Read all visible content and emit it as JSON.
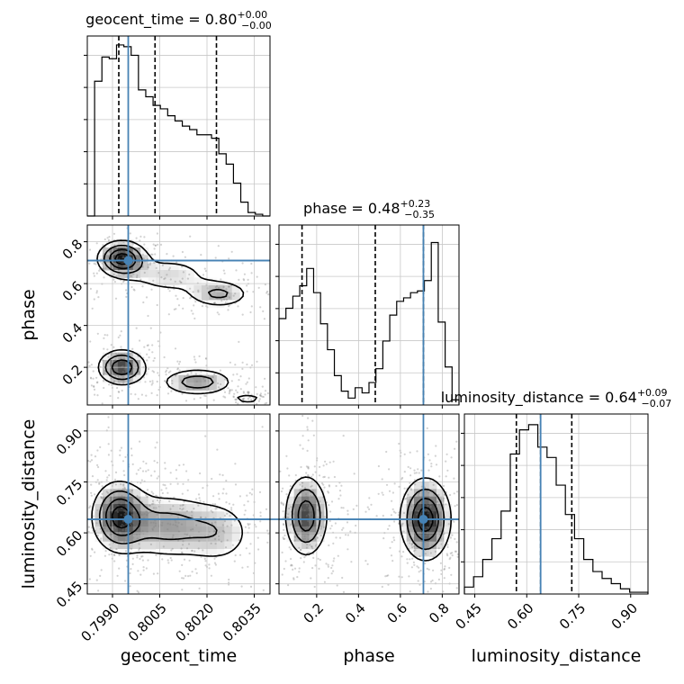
{
  "chart_data": {
    "type": "corner",
    "parameters": [
      "geocent_time",
      "phase",
      "luminosity_distance"
    ],
    "truths": {
      "geocent_time": 0.7995,
      "phase": 0.71,
      "luminosity_distance": 0.64
    },
    "truth_color": "#4682b4",
    "grid": true,
    "marginals": [
      {
        "param": "geocent_time",
        "title": {
          "base": "geocent_time = 0.80",
          "sup": "+0.00",
          "sub": "−0.00"
        },
        "quantiles": [
          0.7992,
          0.80035,
          0.8023
        ],
        "range": [
          0.7982,
          0.804
        ],
        "counts": [
          0,
          0.78,
          0.92,
          0.91,
          0.99,
          0.98,
          0.93,
          0.73,
          0.69,
          0.64,
          0.62,
          0.58,
          0.55,
          0.52,
          0.5,
          0.47,
          0.47,
          0.45,
          0.36,
          0.3,
          0.19,
          0.08,
          0.02,
          0.01,
          0
        ]
      },
      {
        "param": "phase",
        "title": {
          "base": "phase = 0.48",
          "sup": "+0.23",
          "sub": "−0.35"
        },
        "quantiles": [
          0.13,
          0.48,
          0.71
        ],
        "range": [
          0.02,
          0.88
        ],
        "counts": [
          0.5,
          0.56,
          0.63,
          0.69,
          0.79,
          0.65,
          0.47,
          0.32,
          0.17,
          0.08,
          0.04,
          0.1,
          0.07,
          0.13,
          0.21,
          0.37,
          0.52,
          0.6,
          0.62,
          0.65,
          0.66,
          0.72,
          0.94,
          0.48,
          0.22,
          0.03
        ]
      },
      {
        "param": "luminosity_distance",
        "title": {
          "base": "luminosity_distance = 0.64",
          "sup": "+0.09",
          "sub": "−0.07"
        },
        "quantiles": [
          0.57,
          0.64,
          0.73
        ],
        "range": [
          0.42,
          0.95
        ],
        "counts": [
          0.04,
          0.1,
          0.2,
          0.32,
          0.48,
          0.81,
          0.95,
          0.98,
          0.85,
          0.79,
          0.63,
          0.46,
          0.32,
          0.2,
          0.13,
          0.09,
          0.06,
          0.03,
          0.01,
          0.01
        ]
      }
    ],
    "joint_panels": [
      {
        "x": "geocent_time",
        "y": "phase",
        "modes": [
          {
            "x": 0.7993,
            "y": 0.72,
            "sx": 0.00045,
            "sy": 0.05,
            "w": 1.0
          },
          {
            "x": 0.8024,
            "y": 0.55,
            "sx": 0.0006,
            "sy": 0.04,
            "w": 0.5
          },
          {
            "x": 0.8008,
            "y": 0.64,
            "sx": 0.0009,
            "sy": 0.06,
            "w": 0.35
          },
          {
            "x": 0.7993,
            "y": 0.2,
            "sx": 0.00045,
            "sy": 0.05,
            "w": 0.9
          },
          {
            "x": 0.8017,
            "y": 0.13,
            "sx": 0.0007,
            "sy": 0.04,
            "w": 0.6
          },
          {
            "x": 0.8033,
            "y": 0.05,
            "sx": 0.0004,
            "sy": 0.02,
            "w": 0.3
          }
        ]
      },
      {
        "x": "geocent_time",
        "y": "luminosity_distance",
        "modes": [
          {
            "x": 0.7992,
            "y": 0.65,
            "sx": 0.0005,
            "sy": 0.06,
            "w": 1.0
          },
          {
            "x": 0.8007,
            "y": 0.62,
            "sx": 0.0009,
            "sy": 0.06,
            "w": 0.6
          },
          {
            "x": 0.8024,
            "y": 0.6,
            "sx": 0.0007,
            "sy": 0.06,
            "w": 0.4
          }
        ]
      },
      {
        "x": "phase",
        "y": "luminosity_distance",
        "modes": [
          {
            "x": 0.15,
            "y": 0.65,
            "sx": 0.06,
            "sy": 0.07,
            "w": 1.0
          },
          {
            "x": 0.72,
            "y": 0.64,
            "sx": 0.07,
            "sy": 0.07,
            "w": 1.2
          }
        ]
      }
    ],
    "axis_ticks": {
      "geocent_time": {
        "values": [
          0.799,
          0.8005,
          0.802,
          0.8035
        ],
        "labels": [
          "0.7990",
          "0.8005",
          "0.8020",
          "0.8035"
        ],
        "range": [
          0.7982,
          0.804
        ]
      },
      "phase": {
        "values": [
          0.2,
          0.4,
          0.6,
          0.8
        ],
        "labels": [
          "0.2",
          "0.4",
          "0.6",
          "0.8"
        ],
        "range": [
          0.02,
          0.88
        ]
      },
      "luminosity_distance": {
        "values": [
          0.45,
          0.6,
          0.75,
          0.9
        ],
        "labels": [
          "0.45",
          "0.60",
          "0.75",
          "0.90"
        ],
        "range": [
          0.42,
          0.95
        ]
      }
    },
    "axis_labels": {
      "x": [
        "geocent_time",
        "phase",
        "luminosity_distance"
      ],
      "y": [
        "phase",
        "luminosity_distance"
      ]
    }
  }
}
